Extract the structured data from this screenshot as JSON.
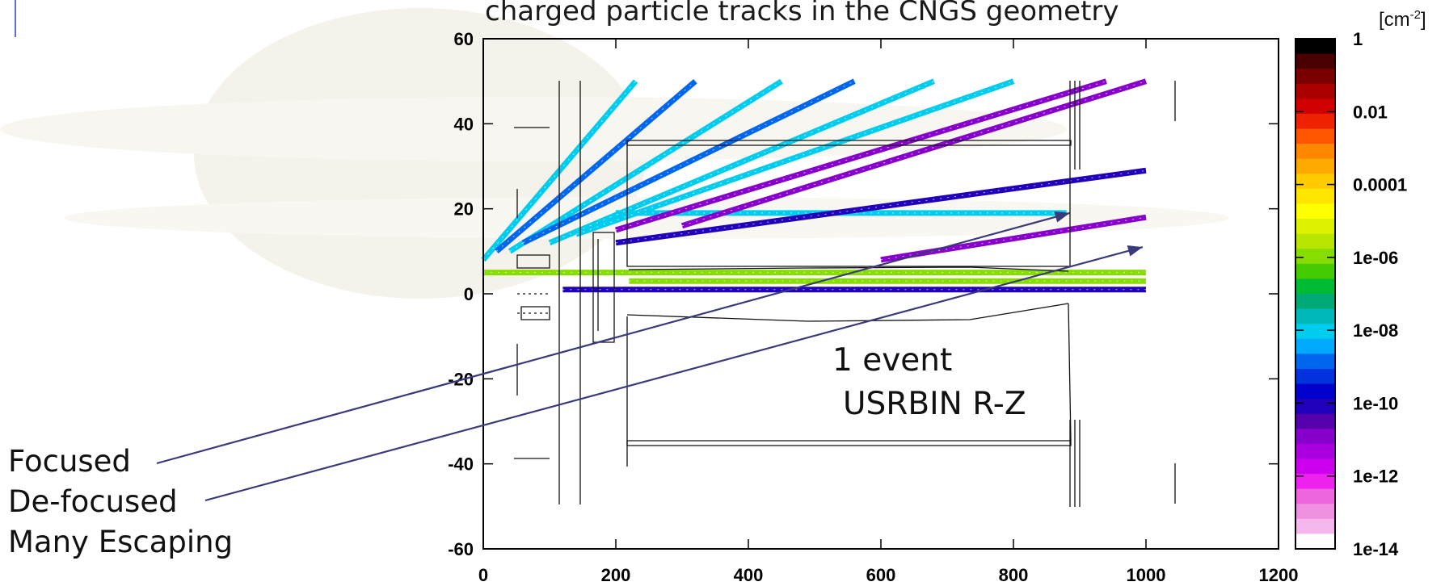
{
  "chart_data": {
    "type": "heatmap",
    "title": "charged particle tracks in the CNGS geometry",
    "xlabel": "",
    "ylabel": "",
    "xlim": [
      0,
      1200
    ],
    "ylim": [
      -60,
      60
    ],
    "x_ticks": [
      "0",
      "200",
      "400",
      "600",
      "800",
      "1000",
      "1200"
    ],
    "y_ticks": [
      "60",
      "40",
      "20",
      "0",
      "-20",
      "-40",
      "-60"
    ],
    "colorbar": {
      "unit_base": "[cm",
      "unit_exp": "-2",
      "unit_close": "]",
      "scale": "log",
      "range": [
        1e-14,
        1
      ],
      "tick_labels": [
        "1",
        "0.01",
        "0.0001",
        "1e-06",
        "1e-08",
        "1e-10",
        "1e-12",
        "1e-14"
      ],
      "colors": [
        "#000000",
        "#4a0000",
        "#7a0000",
        "#aa0000",
        "#d00000",
        "#ee2200",
        "#ff5500",
        "#ff8800",
        "#ffaa00",
        "#ffcc00",
        "#ffe600",
        "#ffff00",
        "#ddf200",
        "#b8e600",
        "#88dd00",
        "#44cc00",
        "#00bb33",
        "#00aa77",
        "#00b8b8",
        "#00ccee",
        "#00aaff",
        "#0066ee",
        "#0033dd",
        "#0000cc",
        "#2200bb",
        "#5500aa",
        "#8800cc",
        "#aa00dd",
        "#cc00ee",
        "#ee22ee",
        "#ee66dd",
        "#f090e0",
        "#f4b8ee",
        "#ffffff"
      ]
    },
    "tracks": [
      {
        "name": "focused",
        "x": [
          0,
          1000
        ],
        "y": [
          5,
          5
        ],
        "level": "1e-06"
      },
      {
        "name": "focused",
        "x": [
          220,
          1000
        ],
        "y": [
          3,
          3
        ],
        "level": "1e-06"
      },
      {
        "name": "focused",
        "x": [
          120,
          1000
        ],
        "y": [
          1,
          1
        ],
        "level": "1e-10"
      },
      {
        "name": "focused",
        "x": [
          200,
          880
        ],
        "y": [
          19,
          19
        ],
        "level": "1e-08"
      },
      {
        "name": "de-focused",
        "x": [
          200,
          1000
        ],
        "y": [
          12,
          29
        ],
        "level": "1e-10"
      },
      {
        "name": "de-focused",
        "x": [
          600,
          1000
        ],
        "y": [
          8,
          18
        ],
        "level": "1e-11"
      },
      {
        "name": "escaping",
        "x": [
          0,
          230
        ],
        "y": [
          8,
          50
        ],
        "level": "1e-08"
      },
      {
        "name": "escaping",
        "x": [
          20,
          320
        ],
        "y": [
          10,
          50
        ],
        "level": "1e-09"
      },
      {
        "name": "escaping",
        "x": [
          40,
          450
        ],
        "y": [
          10,
          50
        ],
        "level": "1e-08"
      },
      {
        "name": "escaping",
        "x": [
          60,
          560
        ],
        "y": [
          12,
          50
        ],
        "level": "1e-09"
      },
      {
        "name": "escaping",
        "x": [
          100,
          680
        ],
        "y": [
          12,
          50
        ],
        "level": "1e-08"
      },
      {
        "name": "escaping",
        "x": [
          140,
          800
        ],
        "y": [
          14,
          50
        ],
        "level": "1e-08"
      },
      {
        "name": "escaping",
        "x": [
          200,
          940
        ],
        "y": [
          15,
          50
        ],
        "level": "1e-11"
      },
      {
        "name": "escaping",
        "x": [
          300,
          1000
        ],
        "y": [
          16,
          50
        ],
        "level": "1e-11"
      }
    ],
    "annotations": [
      "1 event",
      "USRBIN  R-Z"
    ]
  },
  "callouts": [
    "Focused",
    "De-focused",
    "Many Escaping"
  ]
}
